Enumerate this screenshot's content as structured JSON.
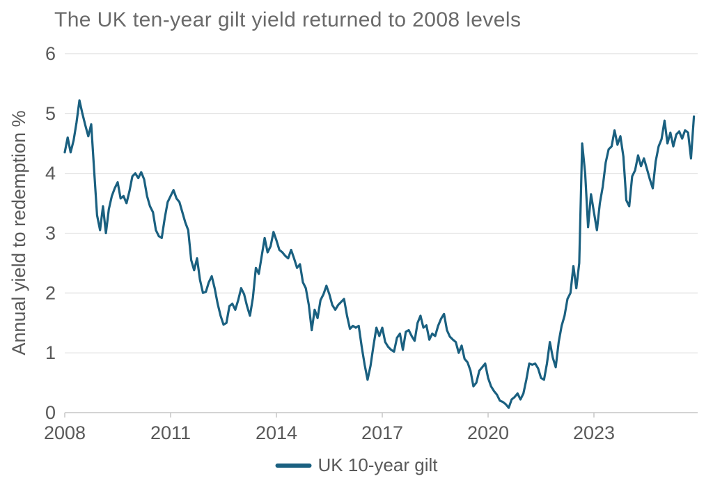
{
  "title": "The UK ten-year gilt yield returned to 2008 levels",
  "chart_data": {
    "type": "line",
    "title": "The UK ten-year gilt yield returned to 2008 levels",
    "xlabel": "",
    "ylabel": "Annual yield to redemption %",
    "ylim": [
      0,
      6
    ],
    "yticks": [
      0,
      1,
      2,
      3,
      4,
      5,
      6
    ],
    "xticks": [
      2008,
      2011,
      2014,
      2017,
      2020,
      2023
    ],
    "x_range": [
      2008,
      2025.94
    ],
    "grid": "horizontal",
    "legend": {
      "position": "bottom-center",
      "label": "UK 10-year gilt"
    },
    "colors": {
      "line": "#1a6080",
      "grid": "#d9d9d9",
      "axis": "#c6c6c6",
      "tick_text": "#595959",
      "title_text": "#6a6a6a"
    },
    "series": [
      {
        "name": "UK 10-year gilt",
        "color": "#1a6080",
        "start_year": 2008,
        "interval_months": 1,
        "values": [
          4.35,
          4.6,
          4.35,
          4.55,
          4.85,
          5.22,
          5.0,
          4.8,
          4.62,
          4.82,
          4.05,
          3.3,
          3.05,
          3.45,
          3.0,
          3.4,
          3.62,
          3.75,
          3.85,
          3.58,
          3.62,
          3.5,
          3.7,
          3.95,
          4.0,
          3.92,
          4.02,
          3.9,
          3.62,
          3.45,
          3.35,
          3.05,
          2.95,
          2.92,
          3.25,
          3.52,
          3.62,
          3.72,
          3.58,
          3.52,
          3.35,
          3.18,
          3.05,
          2.55,
          2.38,
          2.58,
          2.22,
          2.0,
          2.02,
          2.18,
          2.28,
          2.08,
          1.82,
          1.62,
          1.47,
          1.5,
          1.78,
          1.82,
          1.72,
          1.88,
          2.08,
          1.98,
          1.78,
          1.62,
          1.92,
          2.42,
          2.32,
          2.62,
          2.92,
          2.68,
          2.78,
          3.02,
          2.88,
          2.72,
          2.68,
          2.62,
          2.58,
          2.72,
          2.58,
          2.42,
          2.48,
          2.18,
          2.08,
          1.8,
          1.38,
          1.72,
          1.58,
          1.88,
          1.98,
          2.12,
          1.98,
          1.8,
          1.72,
          1.8,
          1.85,
          1.9,
          1.62,
          1.4,
          1.45,
          1.42,
          1.45,
          1.1,
          0.8,
          0.55,
          0.78,
          1.12,
          1.42,
          1.28,
          1.42,
          1.18,
          1.1,
          1.05,
          1.02,
          1.25,
          1.32,
          1.05,
          1.35,
          1.38,
          1.28,
          1.2,
          1.5,
          1.62,
          1.42,
          1.46,
          1.22,
          1.32,
          1.28,
          1.45,
          1.57,
          1.65,
          1.38,
          1.27,
          1.22,
          1.18,
          1.0,
          1.12,
          0.9,
          0.84,
          0.7,
          0.44,
          0.5,
          0.7,
          0.76,
          0.82,
          0.58,
          0.44,
          0.36,
          0.3,
          0.2,
          0.18,
          0.14,
          0.08,
          0.22,
          0.26,
          0.32,
          0.22,
          0.32,
          0.55,
          0.82,
          0.8,
          0.82,
          0.74,
          0.58,
          0.55,
          0.82,
          1.18,
          0.92,
          0.76,
          1.18,
          1.45,
          1.62,
          1.9,
          2.0,
          2.45,
          2.08,
          2.5,
          4.5,
          4.0,
          3.1,
          3.65,
          3.35,
          3.05,
          3.5,
          3.78,
          4.18,
          4.4,
          4.45,
          4.72,
          4.48,
          4.62,
          4.28,
          3.55,
          3.45,
          3.95,
          4.05,
          4.3,
          4.12,
          4.25,
          4.08,
          3.9,
          3.75,
          4.2,
          4.45,
          4.57,
          4.88,
          4.5,
          4.68,
          4.45,
          4.65,
          4.7,
          4.58,
          4.72,
          4.68,
          4.25,
          4.95
        ]
      }
    ]
  }
}
